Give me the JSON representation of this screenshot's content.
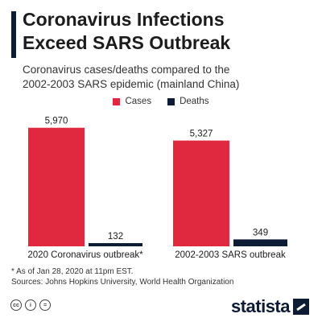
{
  "title_lines": [
    "Coronavirus Infections",
    "Exceed SARS Outbreak"
  ],
  "subtitle_lines": [
    "Coronavirus cases/deaths compared to the",
    "2002-2003 SARS epidemic (mainland China)"
  ],
  "legend": [
    {
      "label": "Cases",
      "color": "#e0283f"
    },
    {
      "label": "Deaths",
      "color": "#0d1b34"
    }
  ],
  "chart_data": {
    "type": "bar",
    "categories": [
      "2020 Coronavirus outbreak*",
      "2002-2003 SARS outbreak"
    ],
    "series": [
      {
        "name": "Cases",
        "color": "#e0283f",
        "values": [
          5970,
          5327
        ],
        "labels": [
          "5,970",
          "5,327"
        ]
      },
      {
        "name": "Deaths",
        "color": "#0d1b34",
        "values": [
          132,
          349
        ],
        "labels": [
          "132",
          "349"
        ]
      }
    ],
    "ylim": [
      0,
      6000
    ],
    "grid": false,
    "legend_position": "top-center"
  },
  "footnotes": [
    "* As of Jan 28, 2020 at 11pm EST.",
    "Sources: Johns Hopkins University, World Health Organization"
  ],
  "license_icons": [
    {
      "name": "cc-icon",
      "glyph": "cc"
    },
    {
      "name": "attribution-icon",
      "glyph": "i"
    },
    {
      "name": "no-derivatives-icon",
      "glyph": "="
    }
  ],
  "brand": "statista"
}
